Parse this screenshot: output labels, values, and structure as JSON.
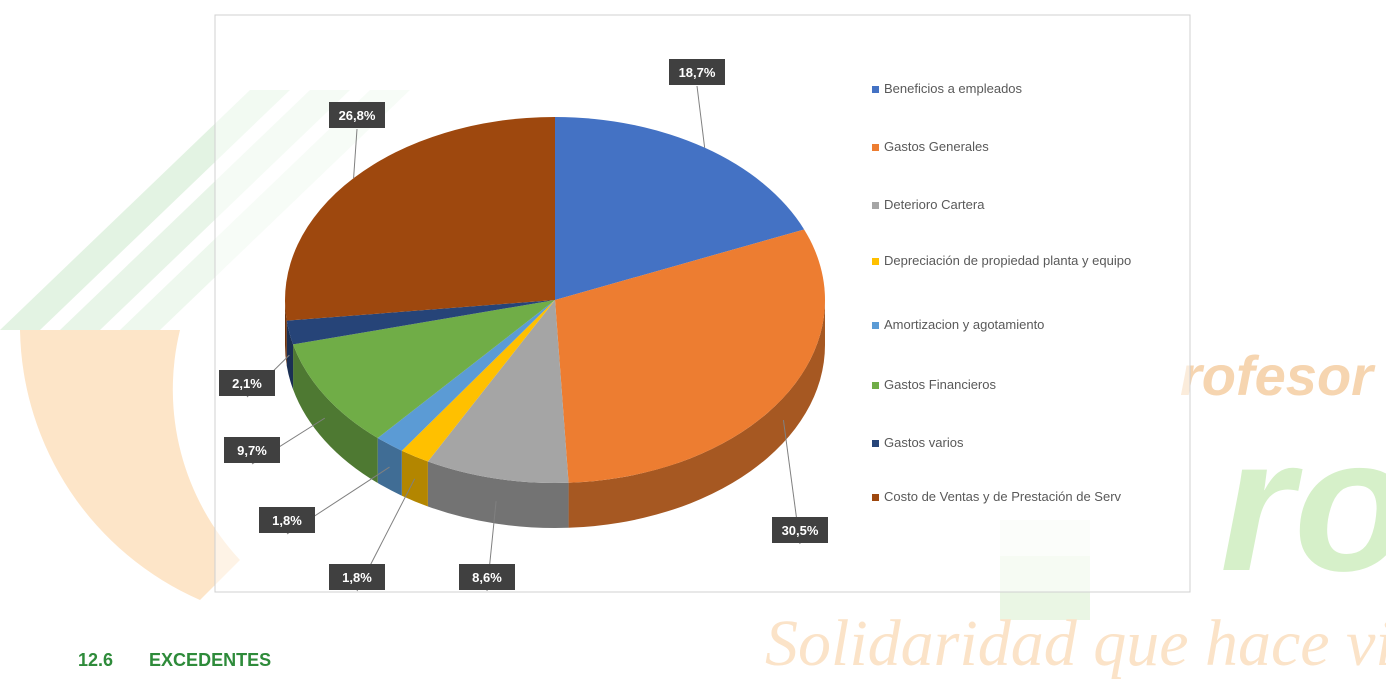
{
  "heading": {
    "number": "12.6",
    "title": "EXCEDENTES"
  },
  "watermark": {
    "slogan": "Solidaridad que hace vida",
    "word": "rofesor",
    "big": "ro"
  },
  "chart_data": {
    "type": "pie",
    "categories": [
      "Beneficios a empleados",
      "Gastos Generales",
      "Deterioro Cartera",
      "Depreciación de propiedad planta y equipo",
      "Amortizacion  y agotamiento",
      "Gastos Financieros",
      "Gastos varios",
      "Costo de Ventas y de Prestación de Serv"
    ],
    "values": [
      18.7,
      30.5,
      8.6,
      1.8,
      1.8,
      9.7,
      2.1,
      26.8
    ],
    "value_labels": [
      "18,7%",
      "30,5%",
      "8,6%",
      "1,8%",
      "1,8%",
      "9,7%",
      "2,1%",
      "26,8%"
    ],
    "colors": [
      "#4472c4",
      "#ed7d31",
      "#a5a5a5",
      "#ffc000",
      "#5b9bd5",
      "#70ad47",
      "#264478",
      "#9e480e"
    ],
    "legend": "right"
  }
}
